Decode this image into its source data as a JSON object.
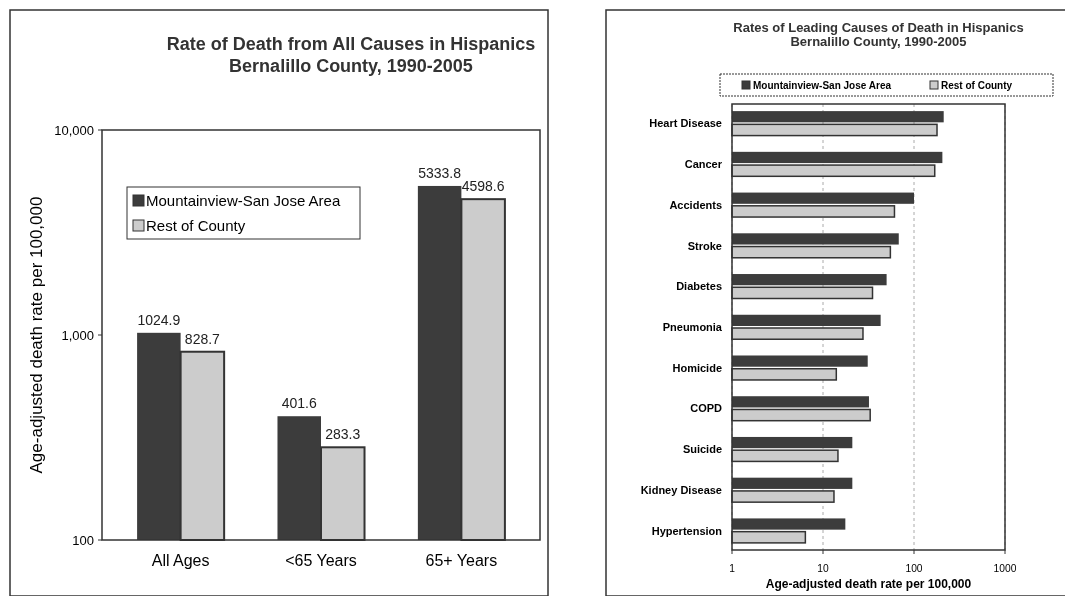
{
  "chart_data": [
    {
      "type": "bar",
      "title": "Rate of Death from All Causes in Hispanics",
      "subtitle": "Bernalillo County, 1990-2005",
      "ylabel": "Age-adjusted death rate per 100,000",
      "categories": [
        "All Ages",
        "<65 Years",
        "65+ Years"
      ],
      "series": [
        {
          "name": "Mountainview-San Jose Area",
          "color": "#3c3c3c",
          "values": [
            1024.9,
            401.6,
            5333.8
          ]
        },
        {
          "name": "Rest of County",
          "color": "#cccccc",
          "values": [
            828.7,
            283.3,
            4598.6
          ]
        }
      ],
      "log": "y",
      "ylim": [
        100,
        10000
      ],
      "yticks": [
        {
          "value": 100,
          "label": "100"
        },
        {
          "value": 1000,
          "label": "1,000"
        },
        {
          "value": 10000,
          "label": "10,000"
        }
      ],
      "data_labels": true,
      "legend": "top left"
    },
    {
      "type": "bar",
      "orientation": "horizontal",
      "title": "Rates of Leading Causes of Death in Hispanics",
      "subtitle": "Bernalillo County, 1990-2005",
      "xlabel": "Age-adjusted death rate per 100,000",
      "categories": [
        "Heart Disease",
        "Cancer",
        "Accidents",
        "Stroke",
        "Diabetes",
        "Pneumonia",
        "Homicide",
        "COPD",
        "Suicide",
        "Kidney Disease",
        "Hypertension"
      ],
      "series": [
        {
          "name": "Mountainview-San Jose Area",
          "color": "#3c3c3c",
          "values": [
            212,
            205,
            100,
            68,
            50,
            43,
            31,
            32,
            21,
            21,
            17.6
          ]
        },
        {
          "name": "Rest of County",
          "color": "#cccccc",
          "values": [
            179,
            169,
            61,
            55,
            35,
            27.5,
            14,
            33,
            14.6,
            13.2,
            6.4
          ]
        }
      ],
      "log": "x",
      "xlim": [
        1,
        1000
      ],
      "xticks": [
        1,
        10,
        100,
        1000
      ],
      "grid": "x",
      "legend": "top"
    }
  ]
}
